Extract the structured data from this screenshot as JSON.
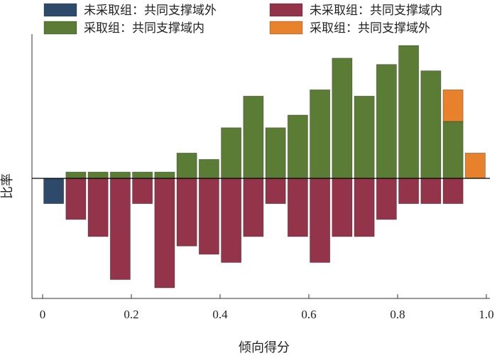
{
  "chart_data": {
    "type": "bar",
    "title": "",
    "xlabel": "倾向得分",
    "ylabel": "比率",
    "xlim": [
      0,
      1.0
    ],
    "ylim": [
      -0.178,
      0.235
    ],
    "xticks": [
      "0",
      "0.2",
      "0.4",
      "0.6",
      "0.8",
      "1.0"
    ],
    "xtick_values": [
      0,
      0.2,
      0.4,
      0.6,
      0.8,
      1.0
    ],
    "bin_width": 0.05,
    "grid": false,
    "legend_position": "top",
    "series": [
      {
        "name": "未采取组：共同支撑域外",
        "color": "#2e4a6b",
        "bins": [
          {
            "x": 0.0,
            "value": -0.04
          }
        ]
      },
      {
        "name": "未采取组：共同支撑域内",
        "color": "#93344a",
        "bins": [
          {
            "x": 0.05,
            "value": -0.065
          },
          {
            "x": 0.1,
            "value": -0.092
          },
          {
            "x": 0.15,
            "value": -0.16
          },
          {
            "x": 0.2,
            "value": -0.04
          },
          {
            "x": 0.25,
            "value": -0.173
          },
          {
            "x": 0.3,
            "value": -0.107
          },
          {
            "x": 0.35,
            "value": -0.12
          },
          {
            "x": 0.4,
            "value": -0.133
          },
          {
            "x": 0.45,
            "value": -0.092
          },
          {
            "x": 0.5,
            "value": -0.04
          },
          {
            "x": 0.55,
            "value": -0.092
          },
          {
            "x": 0.6,
            "value": -0.133
          },
          {
            "x": 0.65,
            "value": -0.092
          },
          {
            "x": 0.7,
            "value": -0.092
          },
          {
            "x": 0.75,
            "value": -0.065
          },
          {
            "x": 0.8,
            "value": -0.04
          },
          {
            "x": 0.85,
            "value": -0.04
          },
          {
            "x": 0.9,
            "value": -0.04
          }
        ]
      },
      {
        "name": "采取组：共同支撑域内",
        "color": "#5a7c35",
        "bins": [
          {
            "x": 0.05,
            "value": 0.01
          },
          {
            "x": 0.1,
            "value": 0.01
          },
          {
            "x": 0.15,
            "value": 0.01
          },
          {
            "x": 0.2,
            "value": 0.01
          },
          {
            "x": 0.25,
            "value": 0.01
          },
          {
            "x": 0.3,
            "value": 0.04
          },
          {
            "x": 0.35,
            "value": 0.03
          },
          {
            "x": 0.4,
            "value": 0.08
          },
          {
            "x": 0.45,
            "value": 0.13
          },
          {
            "x": 0.5,
            "value": 0.08
          },
          {
            "x": 0.55,
            "value": 0.1
          },
          {
            "x": 0.6,
            "value": 0.14
          },
          {
            "x": 0.65,
            "value": 0.19
          },
          {
            "x": 0.7,
            "value": 0.13
          },
          {
            "x": 0.75,
            "value": 0.18
          },
          {
            "x": 0.8,
            "value": 0.21
          },
          {
            "x": 0.85,
            "value": 0.17
          },
          {
            "x": 0.9,
            "value": 0.09
          }
        ]
      },
      {
        "name": "采取组：共同支撑域外",
        "color": "#e8812b",
        "bins": [
          {
            "x": 0.9,
            "value": 0.05,
            "stack_on": 0.09
          },
          {
            "x": 0.95,
            "value": 0.04
          }
        ]
      }
    ]
  }
}
